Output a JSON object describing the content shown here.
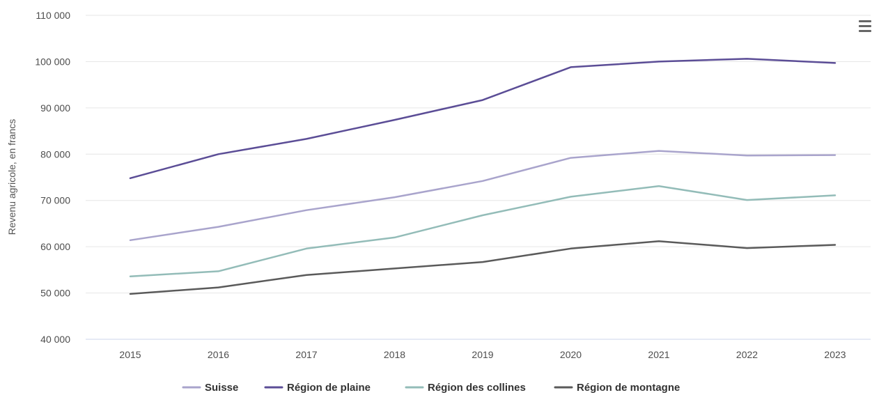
{
  "chart_data": {
    "type": "line",
    "title": "",
    "xlabel": "",
    "ylabel": "Revenu agricole, en francs",
    "categories": [
      "2015",
      "2016",
      "2017",
      "2018",
      "2019",
      "2020",
      "2021",
      "2022",
      "2023"
    ],
    "ylim": [
      40000,
      110000
    ],
    "yticks": [
      40000,
      50000,
      60000,
      70000,
      80000,
      90000,
      100000,
      110000
    ],
    "ytick_labels": [
      "40 000",
      "50 000",
      "60 000",
      "70 000",
      "80 000",
      "90 000",
      "100 000",
      "110 000"
    ],
    "grid": true,
    "legend_position": "bottom-center",
    "series": [
      {
        "name": "Suisse",
        "color": "#a9a4cc",
        "values": [
          61400,
          64300,
          67900,
          70700,
          74200,
          79200,
          80700,
          79700,
          79800
        ]
      },
      {
        "name": "Région de plaine",
        "color": "#5b4d96",
        "values": [
          74800,
          80000,
          83300,
          87400,
          91700,
          98800,
          100000,
          100600,
          99700
        ]
      },
      {
        "name": "Région des collines",
        "color": "#93bcb8",
        "values": [
          53600,
          54700,
          59600,
          62000,
          66800,
          70800,
          73100,
          70100,
          71100
        ]
      },
      {
        "name": "Région de montagne",
        "color": "#5a5a5a",
        "values": [
          49800,
          51200,
          53900,
          55300,
          56700,
          59600,
          61200,
          59700,
          60400
        ]
      }
    ]
  },
  "menu": {
    "icon": "hamburger-menu-icon"
  }
}
